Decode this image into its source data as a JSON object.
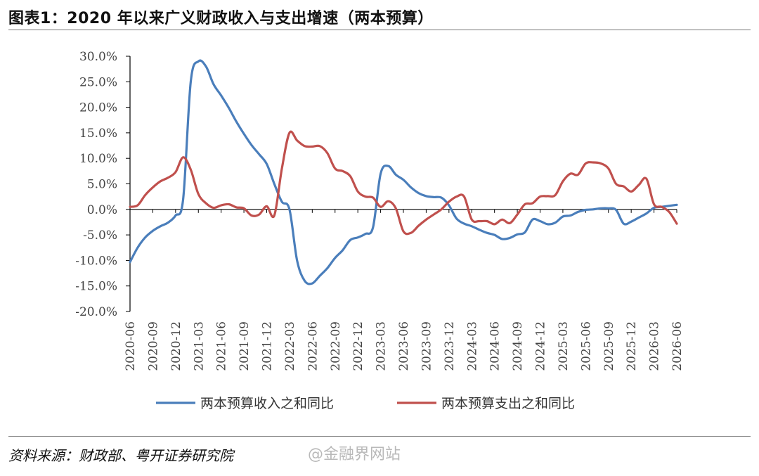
{
  "title": "图表1：2020 年以来广义财政收入与支出增速（两本预算）",
  "source": "资料来源：财政部、粤开证券研究院",
  "watermark": "@金融界网站",
  "chart_data": {
    "type": "line",
    "ylim": [
      -20,
      30
    ],
    "yticks": [
      "30.0%",
      "25.0%",
      "20.0%",
      "15.0%",
      "10.0%",
      "5.0%",
      "0.0%",
      "-5.0%",
      "-10.0%",
      "-15.0%",
      "-20.0%"
    ],
    "ytick_values": [
      30,
      25,
      20,
      15,
      10,
      5,
      0,
      -5,
      -10,
      -15,
      -20
    ],
    "xticks": [
      "2020-06",
      "2020-09",
      "2020-12",
      "2021-03",
      "2021-06",
      "2021-09",
      "2021-12",
      "2022-03",
      "2022-06",
      "2022-09",
      "2022-12",
      "2023-03",
      "2023-06",
      "2023-09",
      "2023-12",
      "2024-03",
      "2024-06",
      "2024-09",
      "2024-12",
      "2025-03",
      "2025-06",
      "2025-09",
      "2025-12",
      "2026-03",
      "2026-06"
    ],
    "legend_position": "bottom",
    "series": [
      {
        "name": "两本预算收入之和同比",
        "color": "#4a7ebb",
        "values": [
          -10.3,
          -7.5,
          -5.5,
          -4.2,
          -3.3,
          -2.6,
          -1.2,
          2.0,
          25.0,
          29.0,
          28.0,
          24.5,
          22.3,
          19.9,
          17.2,
          14.8,
          12.6,
          10.8,
          8.9,
          5.0,
          1.5,
          0.0,
          -10.0,
          -14.0,
          -14.5,
          -13.0,
          -11.5,
          -9.5,
          -8.0,
          -6.0,
          -5.5,
          -4.8,
          -3.5,
          7.0,
          8.5,
          6.8,
          5.8,
          4.3,
          3.2,
          2.6,
          2.4,
          2.3,
          0.8,
          -1.8,
          -2.8,
          -3.3,
          -4.0,
          -4.6,
          -5.0,
          -5.8,
          -5.6,
          -4.9,
          -4.5,
          -2.0,
          -2.3,
          -2.9,
          -2.6,
          -1.4,
          -1.2,
          -0.5,
          -0.1,
          0.0,
          0.2,
          0.2,
          -0.1,
          -2.8,
          -2.4,
          -1.6,
          -0.8,
          0.3,
          0.5,
          0.7,
          0.9
        ]
      },
      {
        "name": "两本预算支出之和同比",
        "color": "#c0504d",
        "values": [
          0.5,
          0.8,
          2.8,
          4.3,
          5.5,
          6.2,
          7.3,
          10.2,
          7.8,
          3.0,
          1.2,
          0.3,
          0.8,
          1.0,
          0.4,
          0.2,
          -1.2,
          -1.0,
          0.6,
          -1.2,
          8.0,
          15.0,
          13.5,
          12.4,
          12.3,
          12.4,
          11.0,
          8.0,
          7.5,
          6.5,
          3.5,
          2.5,
          2.3,
          0.5,
          1.6,
          0.2,
          -4.3,
          -4.6,
          -3.2,
          -2.0,
          -1.0,
          0.0,
          1.5,
          2.5,
          2.5,
          -2.0,
          -2.3,
          -2.3,
          -2.9,
          -2.0,
          -2.7,
          -1.0,
          1.0,
          1.2,
          2.5,
          2.6,
          2.8,
          5.5,
          7.0,
          6.8,
          9.0,
          9.2,
          9.0,
          8.0,
          5.0,
          4.5,
          3.5,
          4.8,
          6.0,
          1.0,
          0.5,
          -0.5,
          -2.8
        ]
      }
    ]
  }
}
